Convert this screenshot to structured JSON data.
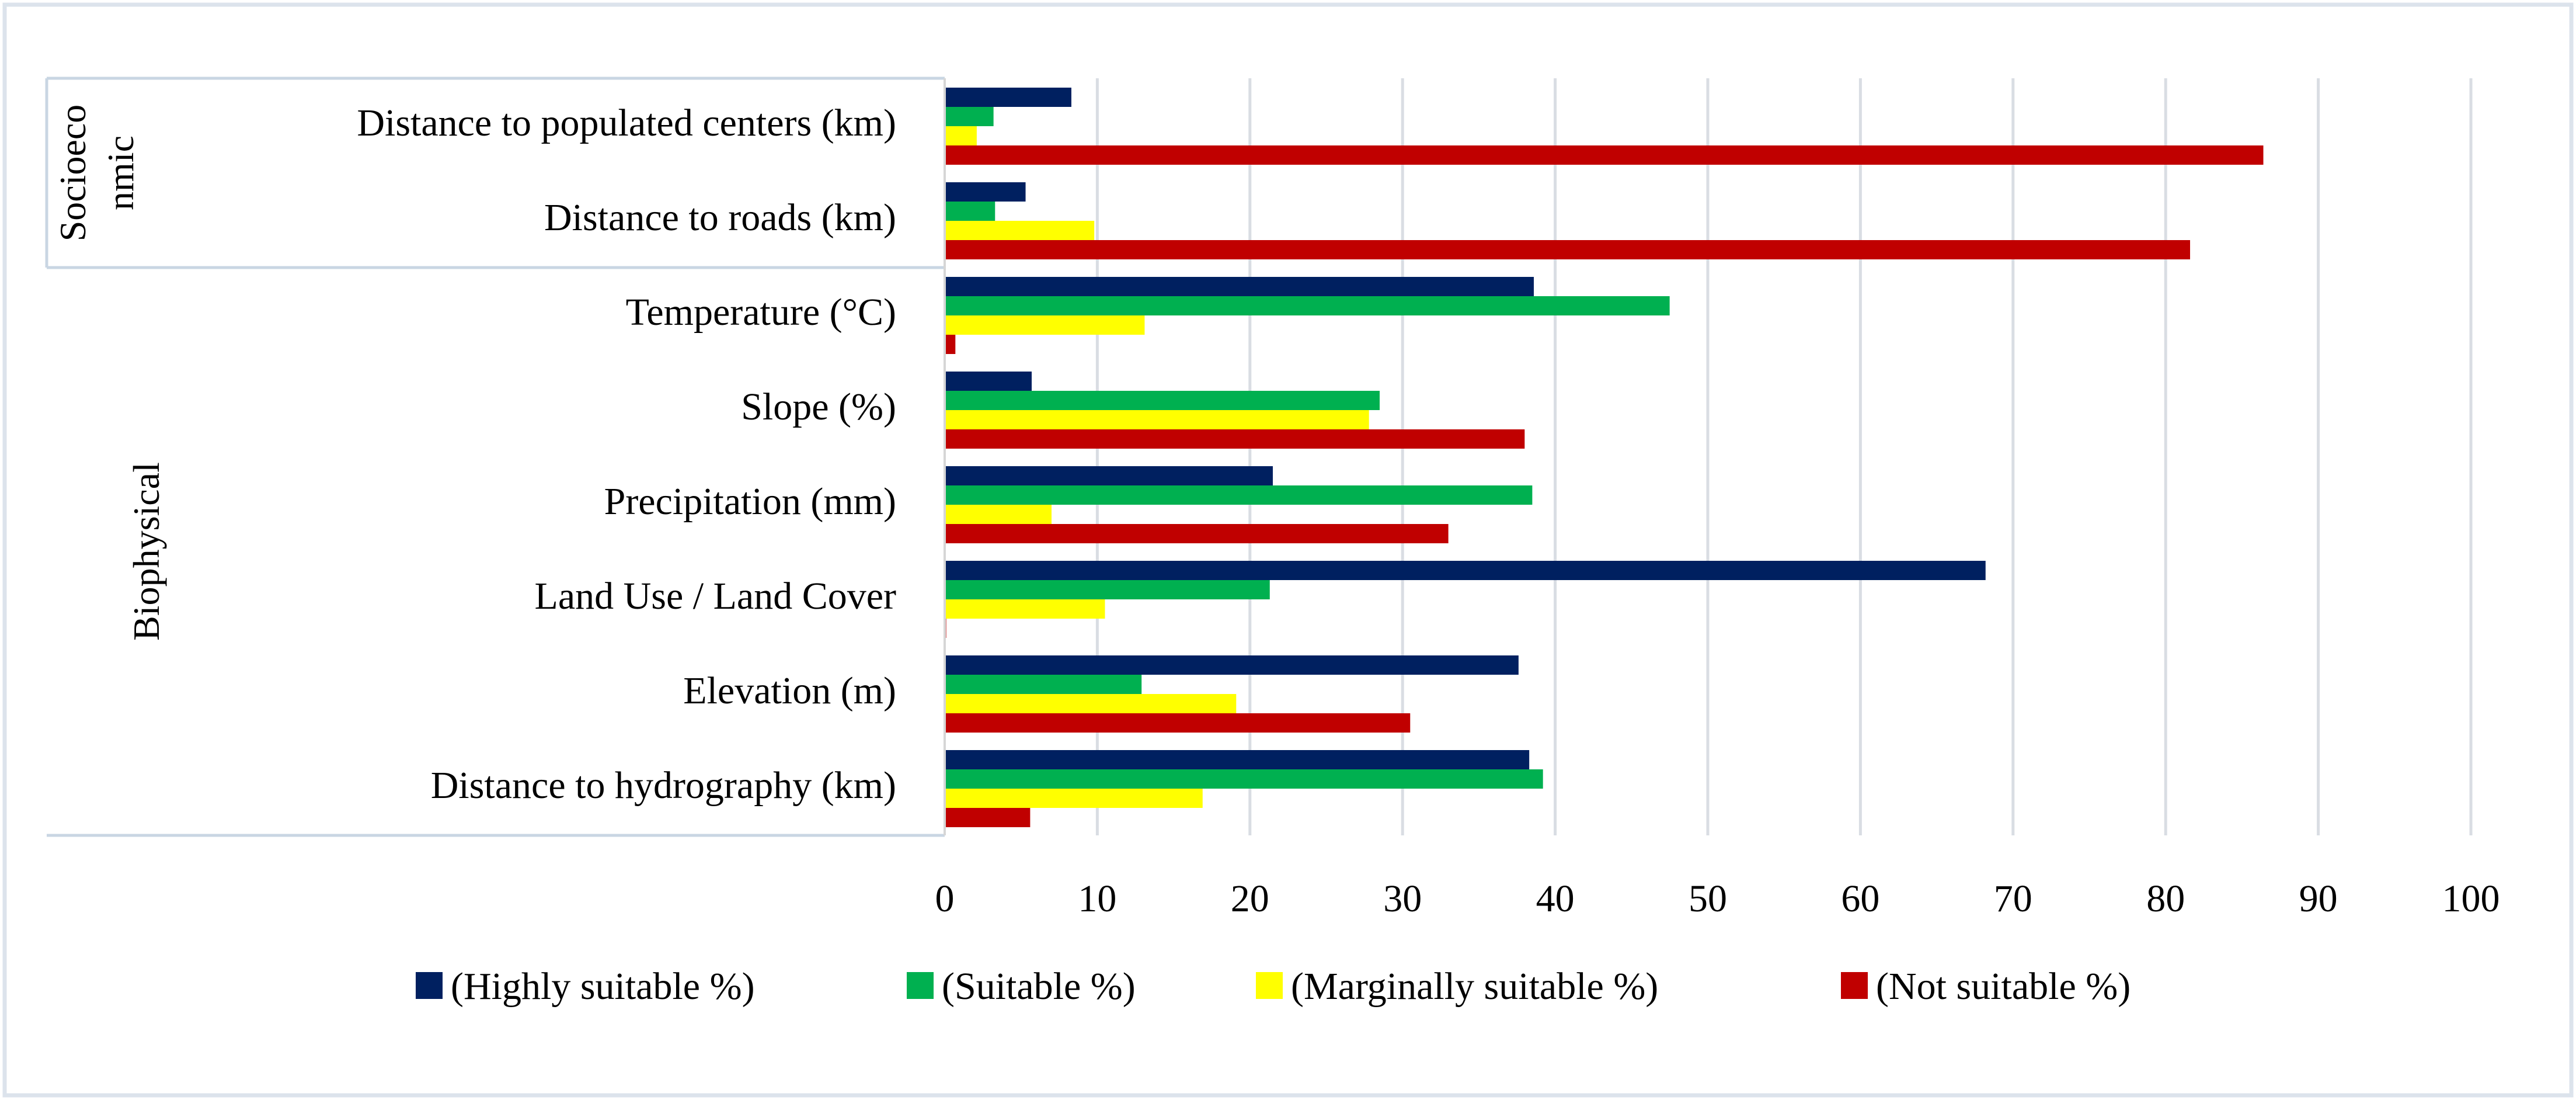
{
  "chart_data": {
    "type": "bar",
    "orientation": "horizontal",
    "title": "",
    "xlabel": "",
    "ylabel": "",
    "xlim": [
      0,
      100
    ],
    "xticks": [
      0,
      10,
      20,
      30,
      40,
      50,
      60,
      70,
      80,
      90,
      100
    ],
    "grid": "vertical",
    "legend_position": "bottom",
    "groups": [
      {
        "name": "Socioeco nmic",
        "label_lines": [
          "Socioeco",
          "nmic"
        ],
        "categories": [
          "Distance to populated centers (km)",
          "Distance to roads (km)"
        ]
      },
      {
        "name": "Biophysical",
        "label_lines": [
          "Biophysical"
        ],
        "categories": [
          "Temperature (°C)",
          "Slope (%)",
          "Precipitation (mm)",
          "Land Use / Land Cover",
          "Elevation (m)",
          "Distance to hydrography (km)"
        ]
      }
    ],
    "categories": [
      "Distance to populated centers (km)",
      "Distance to roads (km)",
      "Temperature (°C)",
      "Slope (%)",
      "Precipitation (mm)",
      "Land Use / Land Cover",
      "Elevation (m)",
      "Distance to hydrography (km)"
    ],
    "series": [
      {
        "name": "(Highly suitable %)",
        "color": "#002060",
        "values": [
          8.3,
          5.3,
          38.6,
          5.7,
          21.5,
          68.2,
          37.6,
          38.3
        ]
      },
      {
        "name": "(Suitable %)",
        "color": "#00B050",
        "values": [
          3.2,
          3.3,
          47.5,
          28.5,
          38.5,
          21.3,
          12.9,
          39.2
        ]
      },
      {
        "name": "(Marginally suitable %)",
        "color": "#FFFF00",
        "values": [
          2.1,
          9.8,
          13.1,
          27.8,
          7.0,
          10.5,
          19.1,
          16.9
        ]
      },
      {
        "name": "(Not suitable %)",
        "color": "#C00000",
        "values": [
          86.4,
          81.6,
          0.7,
          38.0,
          33.0,
          0.1,
          30.5,
          5.6
        ]
      }
    ]
  },
  "style": {
    "grid_color": "#D9DDE3",
    "frame_color": "#DCE3EC",
    "group_line_color": "#C9D6E3",
    "text_color": "#000000",
    "icons": {
      "legend_marker": "square-swatch"
    }
  }
}
